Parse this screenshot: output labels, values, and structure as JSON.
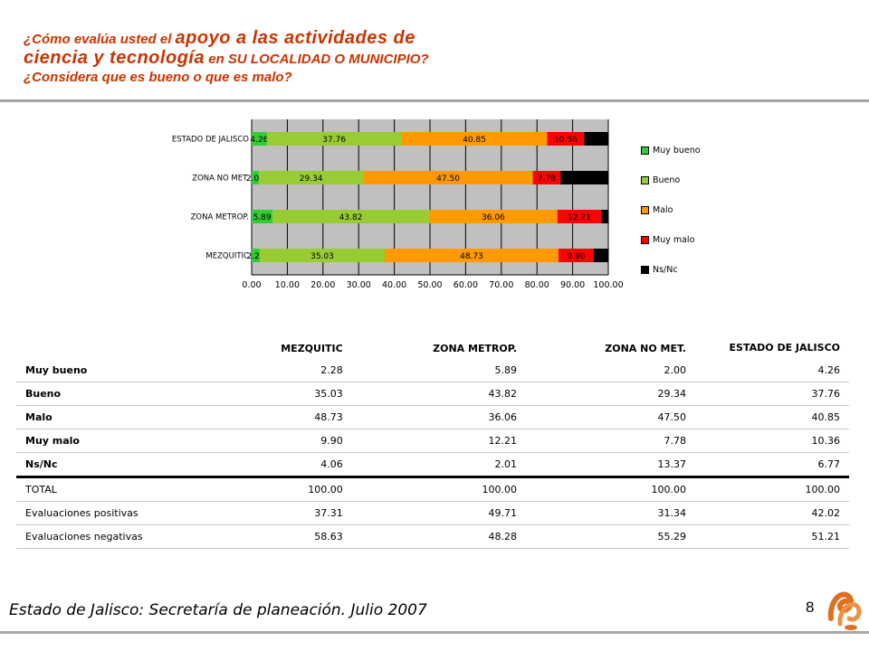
{
  "title": {
    "line1_small": "¿Cómo evalúa usted el ",
    "line1_big": "apoyo a las actividades de",
    "line2_big": "ciencia y tecnología",
    "line2_small": " en SU LOCALIDAD O MUNICIPIO?",
    "line3": "¿Considera que es bueno o que es malo?"
  },
  "chart_data": {
    "type": "bar",
    "orientation": "horizontal",
    "stacked": true,
    "categories": [
      "ESTADO DE JALISCO",
      "ZONA NO MET.",
      "ZONA METROP.",
      "MEZQUITIC"
    ],
    "series": [
      {
        "name": "Muy bueno",
        "color": "#33cc33",
        "values": [
          4.26,
          2.0,
          5.89,
          2.28
        ],
        "labels": [
          "4.26",
          "2.00",
          "5.89",
          "2.28"
        ]
      },
      {
        "name": "Bueno",
        "color": "#99cc33",
        "values": [
          37.76,
          29.34,
          43.82,
          35.03
        ],
        "labels": [
          "37.76",
          "29.34",
          "43.82",
          "35.03"
        ]
      },
      {
        "name": "Malo",
        "color": "#ff9900",
        "values": [
          40.85,
          47.5,
          36.06,
          48.73
        ],
        "labels": [
          "40.85",
          "47.50",
          "36.06",
          "48.73"
        ]
      },
      {
        "name": "Muy malo",
        "color": "#ff0000",
        "values": [
          10.36,
          7.78,
          12.21,
          9.9
        ],
        "labels": [
          "10.36",
          "7.78",
          "12.21",
          "9.90"
        ]
      },
      {
        "name": "Ns/Nc",
        "color": "#000000",
        "values": [
          6.77,
          13.37,
          2.01,
          4.06
        ],
        "labels": [
          "",
          "",
          "",
          ""
        ]
      }
    ],
    "xlim": [
      0,
      100
    ],
    "xticks": [
      "0.00",
      "10.00",
      "20.00",
      "30.00",
      "40.00",
      "50.00",
      "60.00",
      "70.00",
      "80.00",
      "90.00",
      "100.00"
    ],
    "grid": true,
    "legend_position": "right",
    "plot_background": "#c0c0c0"
  },
  "table": {
    "headers": [
      "",
      "MEZQUITIC",
      "ZONA METROP.",
      "ZONA NO MET.",
      "ESTADO DE JALISCO"
    ],
    "rows": [
      {
        "label": "Muy bueno",
        "values": [
          "2.28",
          "5.89",
          "2.00",
          "4.26"
        ],
        "bold": true
      },
      {
        "label": "Bueno",
        "values": [
          "35.03",
          "43.82",
          "29.34",
          "37.76"
        ],
        "bold": true
      },
      {
        "label": "Malo",
        "values": [
          "48.73",
          "36.06",
          "47.50",
          "40.85"
        ],
        "bold": true
      },
      {
        "label": "Muy malo",
        "values": [
          "9.90",
          "12.21",
          "7.78",
          "10.36"
        ],
        "bold": true
      },
      {
        "label": "Ns/Nc",
        "values": [
          "4.06",
          "2.01",
          "13.37",
          "6.77"
        ],
        "bold": true
      },
      {
        "label": "TOTAL",
        "values": [
          "100.00",
          "100.00",
          "100.00",
          "100.00"
        ],
        "bold": false
      },
      {
        "label": "Evaluaciones positivas",
        "values": [
          "37.31",
          "49.71",
          "31.34",
          "42.02"
        ],
        "bold": false
      },
      {
        "label": "Evaluaciones negativas",
        "values": [
          "58.63",
          "48.28",
          "55.29",
          "51.21"
        ],
        "bold": false
      }
    ]
  },
  "footer": {
    "source": "Estado de Jalisco: Secretaría de planeación. Julio 2007",
    "page_number": "8"
  },
  "colors": {
    "title": "#cc3300",
    "rule": "#a6a6a6",
    "logo": "#e07020"
  }
}
